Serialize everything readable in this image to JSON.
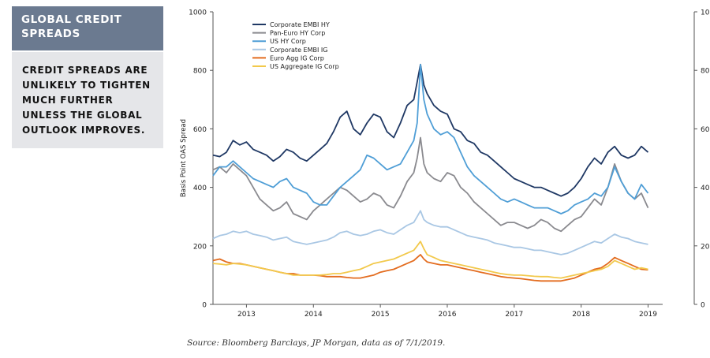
{
  "sidebar": {
    "title": "GLOBAL CREDIT\nSPREADS",
    "body": "CREDIT SPREADS ARE\nUNLIKELY TO TIGHTEN\nMUCH FURTHER\nUNLESS THE GLOBAL\nOUTLOOK IMPROVES."
  },
  "caption": "Source: Bloomberg Barclays, JP Morgan, data as of 7/1/2019.",
  "chart_data": {
    "type": "line",
    "title": "",
    "xlabel": "",
    "ylabel": "Basis Point OAS Spread",
    "xlim": [
      2012.5,
      2019.1
    ],
    "ylim": [
      0,
      1000
    ],
    "yticks": [
      0,
      200,
      400,
      600,
      800,
      1000
    ],
    "xticks": [
      "2013",
      "2014",
      "2015",
      "2016",
      "2017",
      "2018",
      "2019"
    ],
    "grid": false,
    "legend_position": "top-left",
    "x": [
      2012.5,
      2012.6,
      2012.7,
      2012.8,
      2012.9,
      2013.0,
      2013.1,
      2013.2,
      2013.3,
      2013.4,
      2013.5,
      2013.6,
      2013.7,
      2013.8,
      2013.9,
      2014.0,
      2014.1,
      2014.2,
      2014.3,
      2014.4,
      2014.5,
      2014.6,
      2014.7,
      2014.8,
      2014.9,
      2015.0,
      2015.1,
      2015.2,
      2015.3,
      2015.4,
      2015.5,
      2015.55,
      2015.6,
      2015.65,
      2015.7,
      2015.8,
      2015.9,
      2016.0,
      2016.1,
      2016.2,
      2016.3,
      2016.4,
      2016.5,
      2016.6,
      2016.7,
      2016.8,
      2016.9,
      2017.0,
      2017.1,
      2017.2,
      2017.3,
      2017.4,
      2017.5,
      2017.6,
      2017.7,
      2017.8,
      2017.9,
      2018.0,
      2018.1,
      2018.2,
      2018.3,
      2018.4,
      2018.5,
      2018.6,
      2018.7,
      2018.8,
      2018.9,
      2019.0
    ],
    "series": [
      {
        "name": "Corporate EMBI HY",
        "color": "#1f3864",
        "values": [
          510,
          505,
          520,
          560,
          545,
          555,
          530,
          520,
          510,
          490,
          505,
          530,
          520,
          500,
          490,
          510,
          530,
          550,
          590,
          640,
          660,
          600,
          580,
          620,
          650,
          640,
          590,
          570,
          620,
          680,
          700,
          760,
          820,
          750,
          720,
          680,
          660,
          650,
          600,
          590,
          560,
          550,
          520,
          510,
          490,
          470,
          450,
          430,
          420,
          410,
          400,
          400,
          390,
          380,
          370,
          380,
          400,
          430,
          470,
          500,
          480,
          520,
          540,
          510,
          500,
          510,
          540,
          520
        ]
      },
      {
        "name": "Pan-Euro HY Corp",
        "color": "#8a8a8f",
        "values": [
          460,
          470,
          450,
          480,
          460,
          440,
          400,
          360,
          340,
          320,
          330,
          350,
          310,
          300,
          290,
          320,
          340,
          360,
          380,
          400,
          390,
          370,
          350,
          360,
          380,
          370,
          340,
          330,
          370,
          420,
          450,
          500,
          570,
          480,
          450,
          430,
          420,
          450,
          440,
          400,
          380,
          350,
          330,
          310,
          290,
          270,
          280,
          280,
          270,
          260,
          270,
          290,
          280,
          260,
          250,
          270,
          290,
          300,
          330,
          360,
          340,
          400,
          480,
          420,
          380,
          360,
          380,
          330
        ]
      },
      {
        "name": "US HY Corp",
        "color": "#4f9ed6",
        "values": [
          440,
          470,
          470,
          490,
          470,
          450,
          430,
          420,
          410,
          400,
          420,
          430,
          400,
          390,
          380,
          350,
          340,
          340,
          370,
          400,
          420,
          440,
          460,
          510,
          500,
          480,
          460,
          470,
          480,
          520,
          560,
          620,
          820,
          700,
          650,
          600,
          580,
          590,
          570,
          520,
          470,
          440,
          420,
          400,
          380,
          360,
          350,
          360,
          350,
          340,
          330,
          330,
          330,
          320,
          310,
          320,
          340,
          350,
          360,
          380,
          370,
          400,
          470,
          420,
          380,
          360,
          410,
          380
        ]
      },
      {
        "name": "Corporate EMBI IG",
        "color": "#a9c7e4",
        "values": [
          225,
          235,
          240,
          250,
          245,
          250,
          240,
          235,
          230,
          220,
          225,
          230,
          215,
          210,
          205,
          210,
          215,
          220,
          230,
          245,
          250,
          240,
          235,
          240,
          250,
          255,
          245,
          240,
          255,
          270,
          280,
          300,
          320,
          290,
          280,
          270,
          265,
          265,
          255,
          245,
          235,
          230,
          225,
          220,
          210,
          205,
          200,
          195,
          195,
          190,
          185,
          185,
          180,
          175,
          170,
          175,
          185,
          195,
          205,
          215,
          210,
          225,
          240,
          230,
          225,
          215,
          210,
          205
        ]
      },
      {
        "name": "Euro Agg IG Corp",
        "color": "#e36c1f",
        "values": [
          150,
          155,
          145,
          140,
          140,
          135,
          130,
          125,
          120,
          115,
          110,
          105,
          105,
          100,
          100,
          100,
          98,
          95,
          95,
          95,
          92,
          90,
          90,
          95,
          100,
          110,
          115,
          120,
          130,
          140,
          150,
          160,
          170,
          155,
          145,
          140,
          135,
          135,
          130,
          125,
          120,
          115,
          110,
          105,
          100,
          95,
          92,
          90,
          88,
          85,
          82,
          80,
          80,
          80,
          80,
          85,
          90,
          100,
          110,
          120,
          125,
          140,
          160,
          150,
          140,
          130,
          120,
          118
        ]
      },
      {
        "name": "US Aggregate IG Corp",
        "color": "#f2c94c",
        "values": [
          140,
          138,
          135,
          140,
          138,
          135,
          130,
          125,
          120,
          115,
          110,
          105,
          100,
          100,
          100,
          100,
          100,
          102,
          105,
          105,
          110,
          115,
          120,
          130,
          140,
          145,
          150,
          155,
          165,
          175,
          185,
          200,
          215,
          190,
          170,
          160,
          150,
          145,
          140,
          135,
          130,
          125,
          120,
          115,
          110,
          105,
          102,
          100,
          100,
          98,
          96,
          95,
          95,
          92,
          90,
          95,
          100,
          105,
          110,
          115,
          120,
          130,
          150,
          140,
          130,
          120,
          125,
          120
        ]
      }
    ]
  }
}
